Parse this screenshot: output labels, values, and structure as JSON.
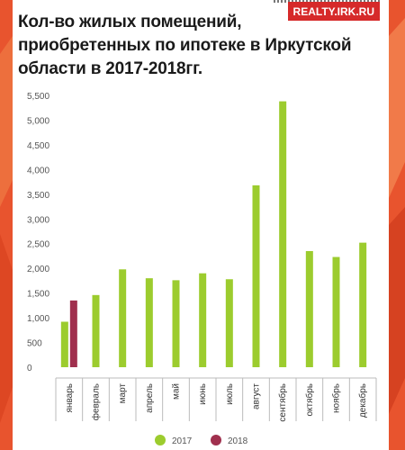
{
  "header": {
    "title": "Кол-во жилых помещений, приобретенных по ипотеке в Иркутской области в 2017-2018гг.",
    "logo": "REALTY.IRK.RU"
  },
  "colors": {
    "background": "#e8542e",
    "series_2017": "#9ccc2e",
    "series_2018": "#a0304e"
  },
  "chart_data": {
    "type": "bar",
    "title": "Кол-во жилых помещений, приобретенных по ипотеке в Иркутской области в 2017-2018гг.",
    "categories": [
      "январь",
      "февраль",
      "март",
      "апрель",
      "май",
      "июнь",
      "июль",
      "август",
      "сентябрь",
      "октябрь",
      "ноябрь",
      "декабрь"
    ],
    "series": [
      {
        "name": "2017",
        "values": [
          920,
          1460,
          1980,
          1800,
          1760,
          1900,
          1780,
          3680,
          5380,
          2350,
          2230,
          2520
        ]
      },
      {
        "name": "2018",
        "values": [
          1350,
          null,
          null,
          null,
          null,
          null,
          null,
          null,
          null,
          null,
          null,
          null
        ]
      }
    ],
    "ylim": [
      0,
      5500
    ],
    "yticks": [
      "0",
      "500",
      "1,000",
      "1,500",
      "2,000",
      "2,500",
      "3,000",
      "3,500",
      "4,000",
      "4,500",
      "5,000",
      "5,500"
    ],
    "grid": false,
    "legend": "bottom"
  }
}
